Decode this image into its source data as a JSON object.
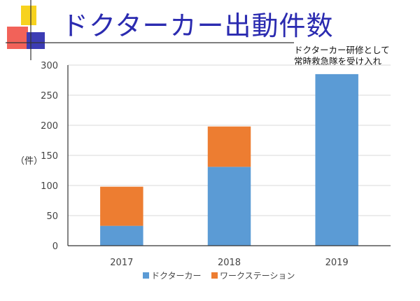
{
  "slide": {
    "title": "ドクターカー出動件数",
    "annotation_lines": [
      "ドクターカー研修として",
      "常時救急隊を受け入れ"
    ],
    "unit_label": "（件）"
  },
  "colors": {
    "title": "#2b2bb0",
    "series_doctor_car": "#5b9bd5",
    "series_workstation": "#ed7d31",
    "deco_yellow": "#f7d21e",
    "deco_red": "#f0463c",
    "deco_blue": "#3c3cb4"
  },
  "chart_data": {
    "type": "bar",
    "stacked": true,
    "categories": [
      "2017",
      "2018",
      "2019"
    ],
    "series": [
      {
        "name": "ドクターカー",
        "values": [
          33,
          131,
          285
        ]
      },
      {
        "name": "ワークステーション",
        "values": [
          65,
          67,
          0
        ]
      }
    ],
    "ylim": [
      0,
      300
    ],
    "yticks": [
      0,
      50,
      100,
      150,
      200,
      250,
      300
    ],
    "grid": true,
    "legend": "bottom"
  }
}
